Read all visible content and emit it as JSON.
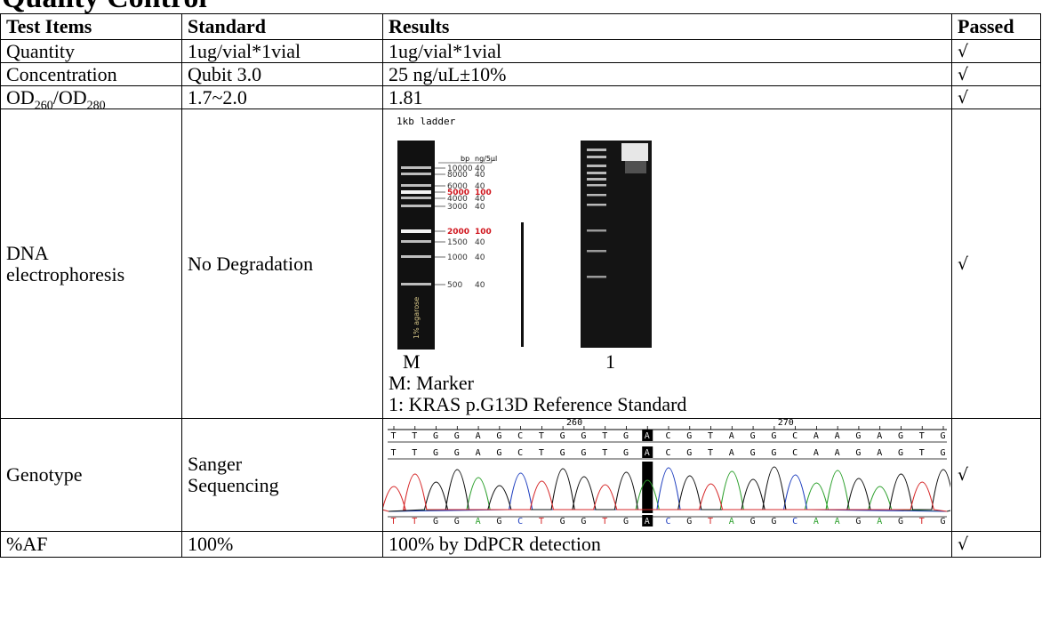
{
  "heading": "Quality Control",
  "columns": [
    "Test Items",
    "Standard",
    "Results",
    "Passed"
  ],
  "check": "√",
  "rows": {
    "quantity": {
      "item": "Quantity",
      "standard": "1ug/vial*1vial",
      "result": "1ug/vial*1vial"
    },
    "concentration": {
      "item": "Concentration",
      "standard": "Qubit 3.0",
      "result": "25 ng/uL±10%"
    },
    "od": {
      "item_a": "OD",
      "sub_a": "260",
      "slash": "/OD",
      "sub_b": "280",
      "standard": "1.7~2.0",
      "result": "1.81"
    },
    "dna": {
      "item_line1": "DNA",
      "item_line2": "electrophoresis",
      "standard": "No Degradation",
      "ladder_title": "1kb ladder",
      "ladder_header_bp": "bp",
      "ladder_header_ng": "ng/5µl",
      "ladder_bands": [
        {
          "bp": "10000",
          "ng": "40",
          "highlight": false
        },
        {
          "bp": "8000",
          "ng": "40",
          "highlight": false
        },
        {
          "bp": "6000",
          "ng": "40",
          "highlight": false
        },
        {
          "bp": "5000",
          "ng": "100",
          "highlight": true
        },
        {
          "bp": "4000",
          "ng": "40",
          "highlight": false
        },
        {
          "bp": "3000",
          "ng": "40",
          "highlight": false
        },
        {
          "bp": "2000",
          "ng": "100",
          "highlight": true
        },
        {
          "bp": "1500",
          "ng": "40",
          "highlight": false
        },
        {
          "bp": "1000",
          "ng": "40",
          "highlight": false
        },
        {
          "bp": "500",
          "ng": "40",
          "highlight": false
        }
      ],
      "agarose_label": "1% agarose",
      "lane_m": "M",
      "lane_1": "1",
      "caption_1": "M: Marker",
      "caption_2": "1: KRAS p.G13D Reference Standard"
    },
    "genotype": {
      "item": "Genotype",
      "standard_line1": "Sanger",
      "standard_line2": "Sequencing",
      "ruler_labels": [
        "260",
        "270"
      ],
      "bases": [
        "T",
        "T",
        "G",
        "G",
        "A",
        "G",
        "C",
        "T",
        "G",
        "G",
        "T",
        "G",
        "A",
        "C",
        "G",
        "T",
        "A",
        "G",
        "G",
        "C",
        "A",
        "A",
        "G",
        "A",
        "G",
        "T",
        "G"
      ],
      "highlight_index": 12
    },
    "af": {
      "item": "%AF",
      "standard": "100%",
      "result": "100% by DdPCR detection"
    }
  },
  "colors": {
    "A": "#2ca02c",
    "C": "#1f3fbf",
    "G": "#111111",
    "T": "#d62728",
    "marker_red": "#d0161e"
  }
}
